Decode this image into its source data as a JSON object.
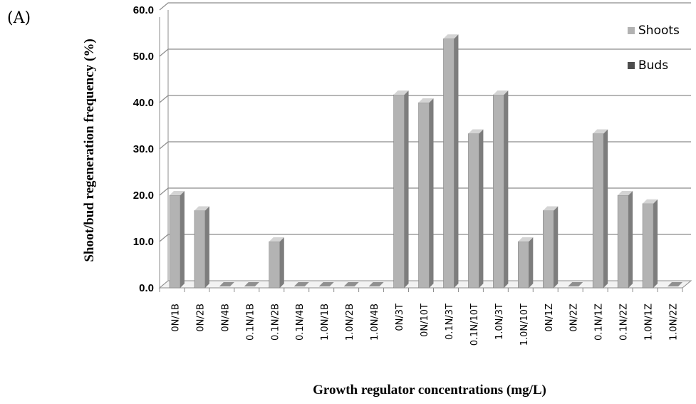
{
  "panel_label": "(A)",
  "chart_data": {
    "type": "bar",
    "title": "",
    "xlabel": "Growth regulator concentrations (mg/L)",
    "ylabel": "Shoot/bud regeneration frequency (%)",
    "ylim": [
      0,
      60
    ],
    "yticks": [
      "0.0",
      "10.0",
      "20.0",
      "30.0",
      "40.0",
      "50.0",
      "60.0"
    ],
    "grid": true,
    "legend_position": "top-right",
    "categories": [
      "0N/1B",
      "0N/2B",
      "0N/4B",
      "0.1N/1B",
      "0.1N/2B",
      "0.1N/4B",
      "1.0N/1B",
      "1.0N/2B",
      "1.0N/4B",
      "0N/3T",
      "0N/10T",
      "0.1N/3T",
      "0.1N/10T",
      "1.0N/3T",
      "1.0N/10T",
      "0N/1Z",
      "0N/2Z",
      "0.1N/1Z",
      "0.1N/2Z",
      "1.0N/1Z",
      "1.0N/2Z"
    ],
    "series": [
      {
        "name": "Shoots",
        "color": "#b2b2b2",
        "values": [
          20.0,
          16.7,
          0,
          0,
          10.0,
          0,
          0,
          0,
          0,
          41.7,
          40.0,
          53.8,
          33.3,
          41.7,
          10.0,
          16.7,
          0,
          33.3,
          20.0,
          18.2,
          0
        ]
      },
      {
        "name": "Buds",
        "color": "#4d4d4d",
        "values": [
          0,
          0,
          0,
          0,
          0,
          0,
          0,
          0,
          0,
          0,
          0,
          0,
          0,
          0,
          0,
          0,
          0,
          0,
          0,
          0,
          0
        ]
      }
    ]
  }
}
